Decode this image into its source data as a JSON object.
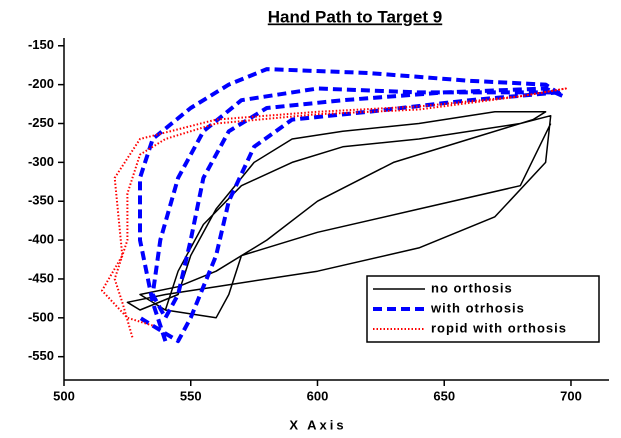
{
  "chart_data": {
    "type": "line",
    "title": "Hand Path to Target 9",
    "x_label": "X Axis",
    "xlim": [
      500,
      715
    ],
    "ylim": [
      -580,
      -140
    ],
    "xticks": [
      500,
      550,
      600,
      650,
      700
    ],
    "yticks": [
      -150,
      -200,
      -250,
      -300,
      -350,
      -400,
      -450,
      -500,
      -550
    ],
    "legend": "lower right",
    "series": [
      {
        "name": "no orthosis",
        "color": "#000000",
        "style": "solid",
        "x": [
          540,
          530,
          545,
          560,
          580,
          600,
          630,
          660,
          685,
          690,
          670,
          640,
          610,
          590,
          575,
          560,
          550,
          545,
          530,
          525,
          540,
          560,
          600,
          640,
          670,
          690,
          692,
          680,
          640,
          610,
          590,
          570,
          555,
          545,
          540,
          560,
          565,
          570,
          600,
          640,
          680,
          692
        ],
        "y": [
          -490,
          -470,
          -460,
          -440,
          -400,
          -350,
          -300,
          -270,
          -245,
          -235,
          -235,
          -250,
          -260,
          -270,
          -300,
          -360,
          -420,
          -470,
          -490,
          -480,
          -470,
          -460,
          -440,
          -410,
          -370,
          -300,
          -240,
          -250,
          -270,
          -280,
          -300,
          -330,
          -380,
          -440,
          -490,
          -500,
          -470,
          -420,
          -390,
          -360,
          -330,
          -250
        ]
      },
      {
        "name": "with otrhosis",
        "color": "#0000ff",
        "style": "dashed",
        "x": [
          540,
          535,
          530,
          530,
          535,
          550,
          565,
          580,
          620,
          660,
          690,
          697,
          690,
          650,
          610,
          580,
          565,
          555,
          550,
          545,
          540,
          535,
          538,
          545,
          555,
          570,
          600,
          640,
          680,
          695,
          660,
          620,
          590,
          575,
          565,
          560,
          550,
          545,
          540,
          530
        ],
        "y": [
          -530,
          -480,
          -400,
          -320,
          -270,
          -230,
          -200,
          -180,
          -185,
          -195,
          -200,
          -215,
          -205,
          -210,
          -220,
          -230,
          -260,
          -320,
          -400,
          -470,
          -500,
          -470,
          -400,
          -320,
          -260,
          -220,
          -205,
          -210,
          -210,
          -210,
          -220,
          -235,
          -245,
          -280,
          -350,
          -420,
          -500,
          -530,
          -520,
          -500
        ]
      },
      {
        "name": "ropid with orthosis",
        "color": "#ff0000",
        "style": "dotted",
        "x": [
          527,
          523,
          520,
          525,
          525,
          530,
          540,
          560,
          600,
          640,
          680,
          698,
          680,
          640,
          600,
          560,
          530,
          520,
          523,
          515,
          525,
          535
        ],
        "y": [
          -525,
          -480,
          -450,
          -400,
          -340,
          -290,
          -270,
          -250,
          -238,
          -232,
          -215,
          -205,
          -215,
          -228,
          -235,
          -245,
          -270,
          -320,
          -420,
          -465,
          -500,
          -510
        ]
      }
    ]
  }
}
